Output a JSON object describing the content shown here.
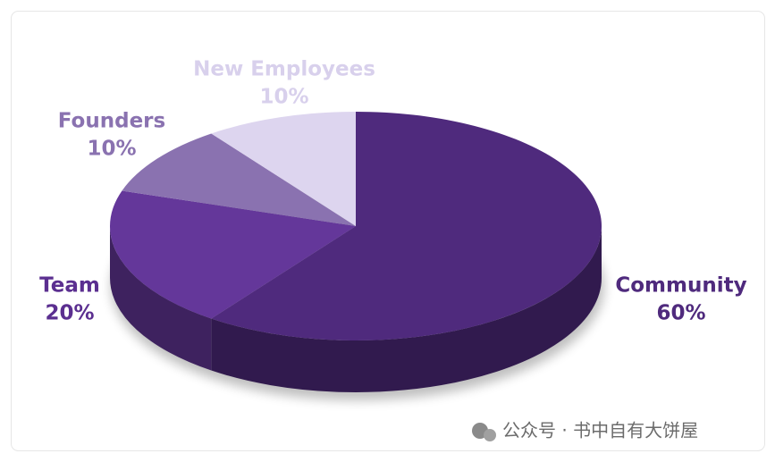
{
  "chart_data": {
    "type": "pie",
    "categories": [
      "Community",
      "Team",
      "Founders",
      "New Employees"
    ],
    "values": [
      60,
      20,
      10,
      10
    ],
    "value_labels": [
      "60%",
      "20%",
      "10%",
      "10%"
    ],
    "colors": [
      "#4f2a7d",
      "#64379a",
      "#8a72b0",
      "#ddd5ef"
    ],
    "label_colors": [
      "#4f2a7d",
      "#5b2f90",
      "#8a72b0",
      "#d8d0ec"
    ]
  },
  "watermark": "公众号 · 书中自有大饼屋"
}
